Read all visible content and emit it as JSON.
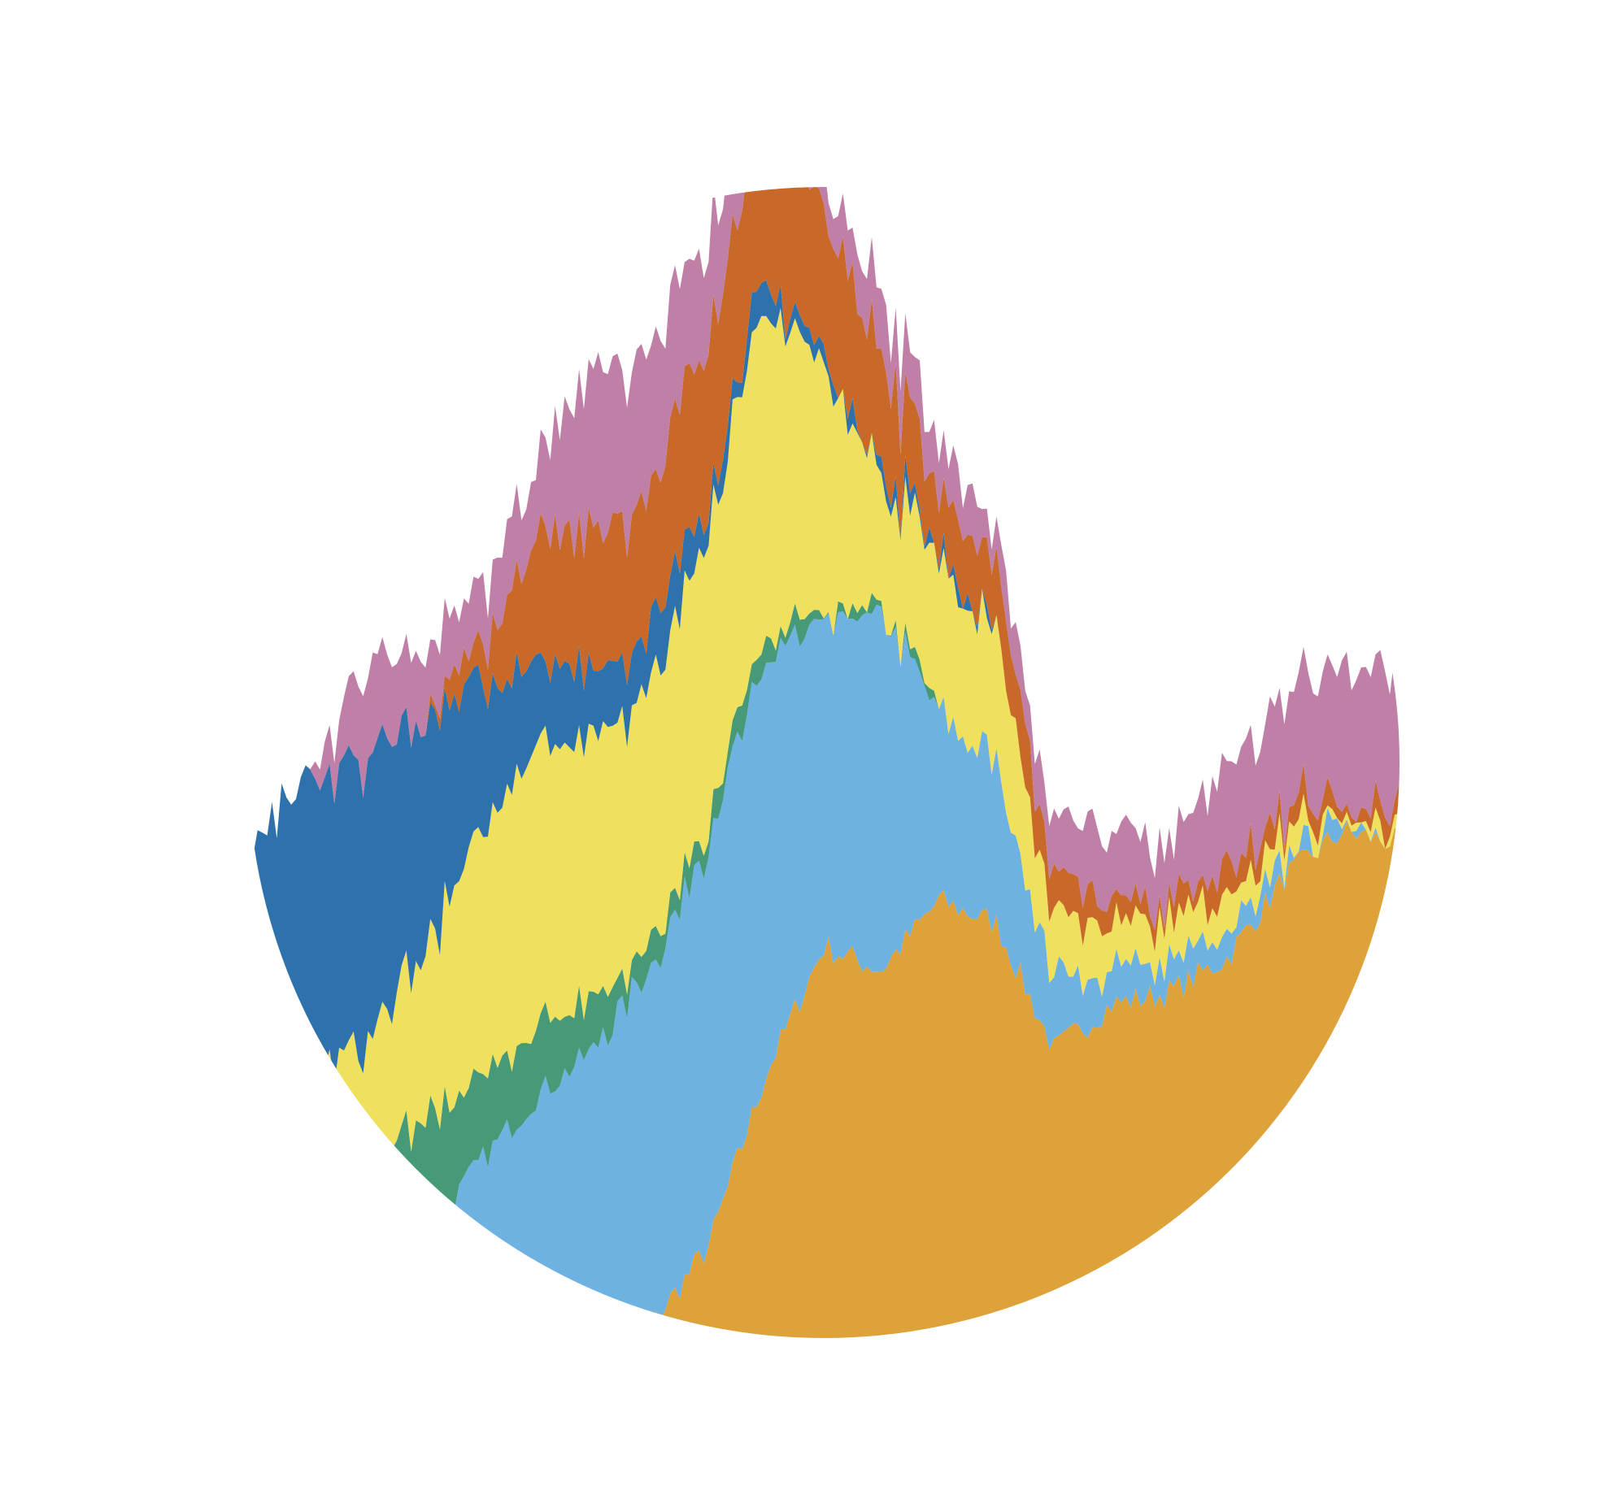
{
  "chart_data": {
    "type": "area",
    "stacked": true,
    "normalized": false,
    "shape": "circle",
    "title": "",
    "xlabel": "",
    "ylabel": "",
    "axes_visible": false,
    "grid": false,
    "legend": "none",
    "x": [
      0,
      5,
      10,
      15,
      20,
      25,
      30,
      35,
      40,
      45,
      50,
      55,
      60,
      65,
      70,
      75,
      80,
      85,
      90,
      95,
      100
    ],
    "ylim": [
      0,
      1
    ],
    "series": [
      {
        "color": "#DDA23A",
        "values": [
          0.0,
          0.0,
          0.0,
          0.0,
          0.0,
          0.0,
          0.0,
          0.01,
          0.08,
          0.23,
          0.34,
          0.32,
          0.38,
          0.36,
          0.25,
          0.29,
          0.3,
          0.33,
          0.4,
          0.44,
          0.43
        ]
      },
      {
        "color": "#6EB2E2",
        "values": [
          0.0,
          0.0,
          0.02,
          0.08,
          0.15,
          0.21,
          0.25,
          0.31,
          0.35,
          0.36,
          0.28,
          0.31,
          0.16,
          0.14,
          0.06,
          0.03,
          0.03,
          0.02,
          0.01,
          0.01,
          0.0
        ]
      },
      {
        "color": "#469A78",
        "values": [
          0.15,
          0.16,
          0.14,
          0.11,
          0.07,
          0.06,
          0.04,
          0.02,
          0.02,
          0.02,
          0.01,
          0.01,
          0.0,
          0.0,
          0.0,
          0.0,
          0.0,
          0.0,
          0.0,
          0.0,
          0.0
        ]
      },
      {
        "color": "#EFE05E",
        "values": [
          0.07,
          0.06,
          0.1,
          0.14,
          0.21,
          0.25,
          0.22,
          0.23,
          0.25,
          0.29,
          0.21,
          0.11,
          0.13,
          0.11,
          0.06,
          0.04,
          0.03,
          0.03,
          0.02,
          0.01,
          0.01
        ]
      },
      {
        "color": "#2E72AD",
        "values": [
          0.2,
          0.26,
          0.25,
          0.21,
          0.13,
          0.07,
          0.06,
          0.05,
          0.03,
          0.02,
          0.01,
          0.01,
          0.01,
          0.0,
          0.0,
          0.0,
          0.0,
          0.0,
          0.0,
          0.0,
          0.0
        ]
      },
      {
        "color": "#C8692A",
        "values": [
          0.0,
          0.0,
          0.0,
          0.0,
          0.03,
          0.11,
          0.12,
          0.12,
          0.14,
          0.14,
          0.13,
          0.1,
          0.05,
          0.06,
          0.03,
          0.02,
          0.02,
          0.02,
          0.02,
          0.01,
          0.02
        ]
      },
      {
        "color": "#C07FA6",
        "values": [
          0.0,
          0.0,
          0.08,
          0.06,
          0.05,
          0.06,
          0.14,
          0.12,
          0.09,
          0.06,
          0.03,
          0.05,
          0.04,
          0.03,
          0.05,
          0.06,
          0.05,
          0.09,
          0.1,
          0.12,
          0.12
        ]
      }
    ]
  }
}
